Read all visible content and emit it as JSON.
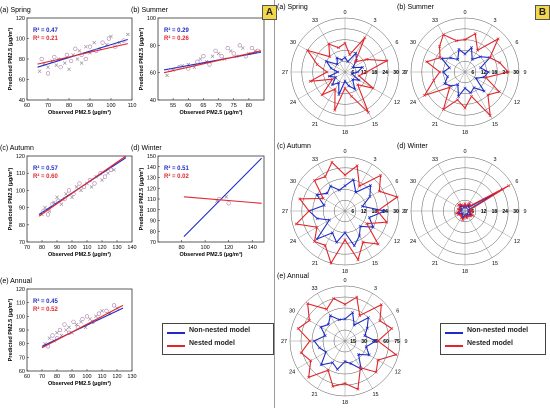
{
  "panel_tags": {
    "a": "A",
    "b": "B"
  },
  "legend": {
    "nonnested": "Non-nested model",
    "nested": "Nested model",
    "colors": {
      "nonnested": "#1f2bc4",
      "nested": "#e0262c"
    }
  },
  "chart_data": [
    {
      "id": "sc-spring",
      "type": "scatter",
      "title": "(a) Spring",
      "xlabel": "Observed PM2.5 (μg/m³)",
      "ylabel": "Predicted PM2.5 (μg/m³)",
      "xlim": [
        60,
        110
      ],
      "ylim": [
        40,
        120
      ],
      "xticks": [
        60,
        70,
        80,
        90,
        100,
        110
      ],
      "yticks": [
        40,
        60,
        80,
        100,
        120
      ],
      "r2": [
        {
          "label": "R² = 0.47",
          "series": "nonnested"
        },
        {
          "label": "R² = 0.21",
          "series": "nested"
        }
      ],
      "fits": {
        "nonnested": [
          [
            65,
            72
          ],
          [
            108,
            99
          ]
        ],
        "nested": [
          [
            65,
            75
          ],
          [
            108,
            95
          ]
        ]
      },
      "points": {
        "nonnested": [
          [
            66,
            68
          ],
          [
            68,
            75
          ],
          [
            70,
            72
          ],
          [
            72,
            78
          ],
          [
            74,
            74
          ],
          [
            75,
            80
          ],
          [
            78,
            76
          ],
          [
            80,
            70
          ],
          [
            82,
            84
          ],
          [
            84,
            80
          ],
          [
            85,
            88
          ],
          [
            86,
            76
          ],
          [
            88,
            92
          ],
          [
            90,
            86
          ],
          [
            92,
            96
          ],
          [
            95,
            90
          ],
          [
            98,
            94
          ],
          [
            100,
            102
          ],
          [
            104,
            96
          ],
          [
            108,
            104
          ]
        ],
        "nested": [
          [
            67,
            80
          ],
          [
            70,
            66
          ],
          [
            73,
            82
          ],
          [
            76,
            72
          ],
          [
            79,
            84
          ],
          [
            81,
            78
          ],
          [
            83,
            90
          ],
          [
            86,
            84
          ],
          [
            88,
            80
          ],
          [
            90,
            92
          ],
          [
            93,
            88
          ],
          [
            96,
            96
          ],
          [
            99,
            100
          ],
          [
            102,
            92
          ],
          [
            106,
            98
          ]
        ]
      }
    },
    {
      "id": "sc-summer",
      "type": "scatter",
      "title": "(b) Summer",
      "xlabel": "Observed PM2.5 (μg/m³)",
      "ylabel": "Predicted PM2.5 (μg/m³)",
      "xlim": [
        50,
        85
      ],
      "ylim": [
        40,
        100
      ],
      "xticks": [
        55,
        60,
        65,
        70,
        75,
        80
      ],
      "yticks": [
        40,
        60,
        80,
        100
      ],
      "r2": [
        {
          "label": "R² = 0.29",
          "series": "nonnested"
        },
        {
          "label": "R² = 0.26",
          "series": "nested"
        }
      ],
      "fits": {
        "nonnested": [
          [
            52,
            62
          ],
          [
            84,
            75
          ]
        ],
        "nested": [
          [
            52,
            60
          ],
          [
            84,
            76
          ]
        ]
      },
      "points": {
        "nonnested": [
          [
            53,
            58
          ],
          [
            55,
            62
          ],
          [
            58,
            65
          ],
          [
            60,
            66
          ],
          [
            62,
            64
          ],
          [
            64,
            70
          ],
          [
            66,
            68
          ],
          [
            68,
            72
          ],
          [
            70,
            74
          ],
          [
            72,
            70
          ],
          [
            74,
            76
          ],
          [
            76,
            72
          ],
          [
            78,
            78
          ],
          [
            80,
            74
          ],
          [
            82,
            76
          ]
        ],
        "nested": [
          [
            54,
            62
          ],
          [
            57,
            64
          ],
          [
            60,
            63
          ],
          [
            63,
            68
          ],
          [
            65,
            72
          ],
          [
            67,
            66
          ],
          [
            69,
            76
          ],
          [
            71,
            72
          ],
          [
            73,
            78
          ],
          [
            75,
            74
          ],
          [
            77,
            80
          ],
          [
            79,
            72
          ],
          [
            81,
            78
          ],
          [
            83,
            76
          ]
        ]
      }
    },
    {
      "id": "sc-autumn",
      "type": "scatter",
      "title": "(c) Autumn",
      "xlabel": "Observed PM2.5 (μg/m³)",
      "ylabel": "Predicted PM2.5 (μg/m³)",
      "xlim": [
        70,
        140
      ],
      "ylim": [
        70,
        120
      ],
      "xticks": [
        70,
        80,
        90,
        100,
        110,
        120,
        130,
        140
      ],
      "yticks": [
        70,
        80,
        90,
        100,
        110,
        120
      ],
      "r2": [
        {
          "label": "R² = 0.57",
          "series": "nonnested"
        },
        {
          "label": "R² = 0.60",
          "series": "nested"
        }
      ],
      "fits": {
        "nonnested": [
          [
            78,
            86
          ],
          [
            136,
            119
          ]
        ],
        "nested": [
          [
            78,
            85
          ],
          [
            136,
            120
          ]
        ]
      },
      "points": {
        "nonnested": [
          [
            80,
            86
          ],
          [
            82,
            90
          ],
          [
            85,
            88
          ],
          [
            88,
            93
          ],
          [
            90,
            96
          ],
          [
            93,
            92
          ],
          [
            96,
            98
          ],
          [
            100,
            96
          ],
          [
            103,
            102
          ],
          [
            106,
            100
          ],
          [
            110,
            104
          ],
          [
            113,
            102
          ],
          [
            116,
            108
          ],
          [
            120,
            106
          ],
          [
            124,
            110
          ],
          [
            128,
            112
          ]
        ],
        "nested": [
          [
            81,
            88
          ],
          [
            84,
            86
          ],
          [
            87,
            92
          ],
          [
            91,
            94
          ],
          [
            95,
            95
          ],
          [
            98,
            100
          ],
          [
            101,
            98
          ],
          [
            105,
            104
          ],
          [
            108,
            102
          ],
          [
            112,
            106
          ],
          [
            115,
            104
          ],
          [
            119,
            110
          ],
          [
            122,
            108
          ],
          [
            126,
            112
          ]
        ]
      }
    },
    {
      "id": "sc-winter",
      "type": "scatter",
      "title": "(d) Winter",
      "xlabel": "Observed PM2.5 (μg/m³)",
      "ylabel": "Predicted PM2.5 (μg/m³)",
      "xlim": [
        60,
        150
      ],
      "ylim": [
        70,
        150
      ],
      "xticks": [
        80,
        100,
        120,
        140
      ],
      "yticks": [
        70,
        80,
        90,
        100,
        110,
        120,
        130,
        140,
        150
      ],
      "r2": [
        {
          "label": "R² = 0.51",
          "series": "nonnested"
        },
        {
          "label": "R² = 0.02",
          "series": "nested"
        }
      ],
      "fits": {
        "nonnested": [
          [
            82,
            75
          ],
          [
            148,
            148
          ]
        ],
        "nested": [
          [
            82,
            112
          ],
          [
            148,
            106
          ]
        ]
      },
      "points": {
        "nonnested": [
          [
            110,
            108
          ],
          [
            118,
            112
          ]
        ],
        "nested": [
          [
            112,
            110
          ],
          [
            120,
            106
          ]
        ]
      }
    },
    {
      "id": "sc-annual",
      "type": "scatter",
      "title": "(e) Annual",
      "xlabel": "Observed PM2.5 (μg/m³)",
      "ylabel": "Predicted PM2.5 (μg/m³)",
      "xlim": [
        60,
        130
      ],
      "ylim": [
        60,
        120
      ],
      "xticks": [
        60,
        70,
        80,
        90,
        100,
        110,
        120,
        130
      ],
      "yticks": [
        60,
        70,
        80,
        90,
        100,
        110,
        120
      ],
      "r2": [
        {
          "label": "R² = 0.45",
          "series": "nonnested"
        },
        {
          "label": "R² = 0.52",
          "series": "nested"
        }
      ],
      "fits": {
        "nonnested": [
          [
            70,
            78
          ],
          [
            124,
            106
          ]
        ],
        "nested": [
          [
            70,
            77
          ],
          [
            124,
            108
          ]
        ]
      },
      "points": {
        "nonnested": [
          [
            72,
            80
          ],
          [
            75,
            84
          ],
          [
            78,
            82
          ],
          [
            80,
            88
          ],
          [
            83,
            86
          ],
          [
            86,
            90
          ],
          [
            88,
            92
          ],
          [
            90,
            88
          ],
          [
            93,
            94
          ],
          [
            96,
            96
          ],
          [
            99,
            92
          ],
          [
            102,
            98
          ],
          [
            106,
            100
          ],
          [
            110,
            104
          ],
          [
            115,
            102
          ],
          [
            120,
            106
          ]
        ],
        "nested": [
          [
            74,
            78
          ],
          [
            77,
            86
          ],
          [
            80,
            84
          ],
          [
            82,
            90
          ],
          [
            85,
            94
          ],
          [
            88,
            88
          ],
          [
            91,
            96
          ],
          [
            94,
            92
          ],
          [
            97,
            98
          ],
          [
            100,
            100
          ],
          [
            104,
            96
          ],
          [
            108,
            102
          ],
          [
            113,
            104
          ],
          [
            118,
            108
          ]
        ]
      }
    },
    {
      "id": "rd-spring",
      "type": "radar",
      "title": "(a) Spring",
      "angle_labels": [
        "0",
        "3",
        "6",
        "9",
        "12",
        "15",
        "18",
        "21",
        "24",
        "27",
        "30",
        "33"
      ],
      "rings": [
        6,
        12,
        18,
        24,
        30
      ],
      "ring_labels": [
        "6",
        "12",
        "18",
        "24",
        "30"
      ],
      "series": {
        "nonnested": [
          8,
          6,
          12,
          9,
          5,
          10,
          7,
          4,
          9,
          6,
          11,
          8,
          5,
          13,
          7,
          10,
          6,
          9,
          4,
          8,
          12,
          6,
          9,
          7
        ],
        "nested": [
          16,
          10,
          22,
          8,
          14,
          24,
          12,
          8,
          18,
          10,
          26,
          14,
          9,
          22,
          11,
          18,
          8,
          20,
          10,
          16,
          24,
          12,
          18,
          14
        ]
      }
    },
    {
      "id": "rd-summer",
      "type": "radar",
      "title": "(b) Summer",
      "angle_labels": [
        "0",
        "3",
        "6",
        "9",
        "12",
        "15",
        "18",
        "21",
        "24",
        "27",
        "30",
        "33"
      ],
      "rings": [
        6,
        12,
        18,
        24,
        30
      ],
      "ring_labels": [
        "6",
        "12",
        "18",
        "24",
        "30"
      ],
      "series": {
        "nonnested": [
          10,
          14,
          8,
          12,
          16,
          9,
          13,
          11,
          7,
          15,
          10,
          12,
          9,
          14,
          8,
          11,
          13,
          10,
          12,
          9,
          15,
          11,
          8,
          13
        ],
        "nested": [
          18,
          22,
          14,
          26,
          16,
          20,
          24,
          12,
          22,
          18,
          28,
          14,
          20,
          16,
          24,
          12,
          26,
          18,
          14,
          22,
          16,
          20,
          24,
          18
        ]
      }
    },
    {
      "id": "rd-autumn",
      "type": "radar",
      "title": "(c) Autumn",
      "angle_labels": [
        "0",
        "3",
        "6",
        "9",
        "12",
        "15",
        "18",
        "21",
        "24",
        "27",
        "30",
        "33"
      ],
      "rings": [
        6,
        12,
        18,
        24,
        30
      ],
      "ring_labels": [
        "6",
        "12",
        "18",
        "24",
        "30"
      ],
      "series": {
        "nonnested": [
          14,
          18,
          12,
          20,
          16,
          10,
          22,
          14,
          18,
          12,
          16,
          20,
          12,
          18,
          14,
          22,
          10,
          16,
          20,
          12,
          18,
          14,
          16,
          12
        ],
        "nested": [
          20,
          26,
          16,
          28,
          22,
          30,
          18,
          24,
          14,
          26,
          20,
          28,
          16,
          30,
          22,
          24,
          18,
          28,
          20,
          26,
          14,
          24,
          22,
          28
        ]
      }
    },
    {
      "id": "rd-winter",
      "type": "radar",
      "title": "(d) Winter",
      "angle_labels": [
        "0",
        "3",
        "6",
        "9",
        "12",
        "15",
        "18",
        "21",
        "24",
        "27",
        "30",
        "33"
      ],
      "rings": [
        6,
        12,
        18,
        24,
        30
      ],
      "ring_labels": [
        "6",
        "12",
        "18",
        "24",
        "30"
      ],
      "series": {
        "nonnested": [
          3,
          2,
          4,
          3,
          24,
          2,
          3,
          2,
          4,
          3,
          2,
          3,
          2,
          4,
          3,
          2,
          3,
          4,
          2,
          3,
          2,
          4,
          3,
          2
        ],
        "nested": [
          4,
          3,
          5,
          4,
          28,
          3,
          4,
          3,
          5,
          4,
          3,
          4,
          3,
          5,
          4,
          3,
          4,
          5,
          3,
          4,
          3,
          5,
          4,
          3
        ]
      }
    },
    {
      "id": "rd-annual",
      "type": "radar",
      "title": "(e) Annual",
      "angle_labels": [
        "0",
        "3",
        "6",
        "9",
        "12",
        "15",
        "18",
        "21",
        "24",
        "27",
        "30",
        "33"
      ],
      "rings": [
        15,
        30,
        45,
        60,
        75
      ],
      "ring_labels": [
        "15",
        "30",
        "45",
        "60",
        "75"
      ],
      "series": {
        "nonnested": [
          30,
          40,
          25,
          45,
          35,
          28,
          42,
          30,
          38,
          26,
          44,
          32,
          28,
          40,
          34,
          46,
          30,
          36,
          42,
          28,
          38,
          32,
          40,
          30
        ],
        "nested": [
          50,
          62,
          40,
          70,
          55,
          66,
          45,
          72,
          52,
          60,
          42,
          68,
          58,
          64,
          46,
          70,
          54,
          62,
          48,
          66,
          56,
          72,
          50,
          60
        ]
      }
    }
  ]
}
